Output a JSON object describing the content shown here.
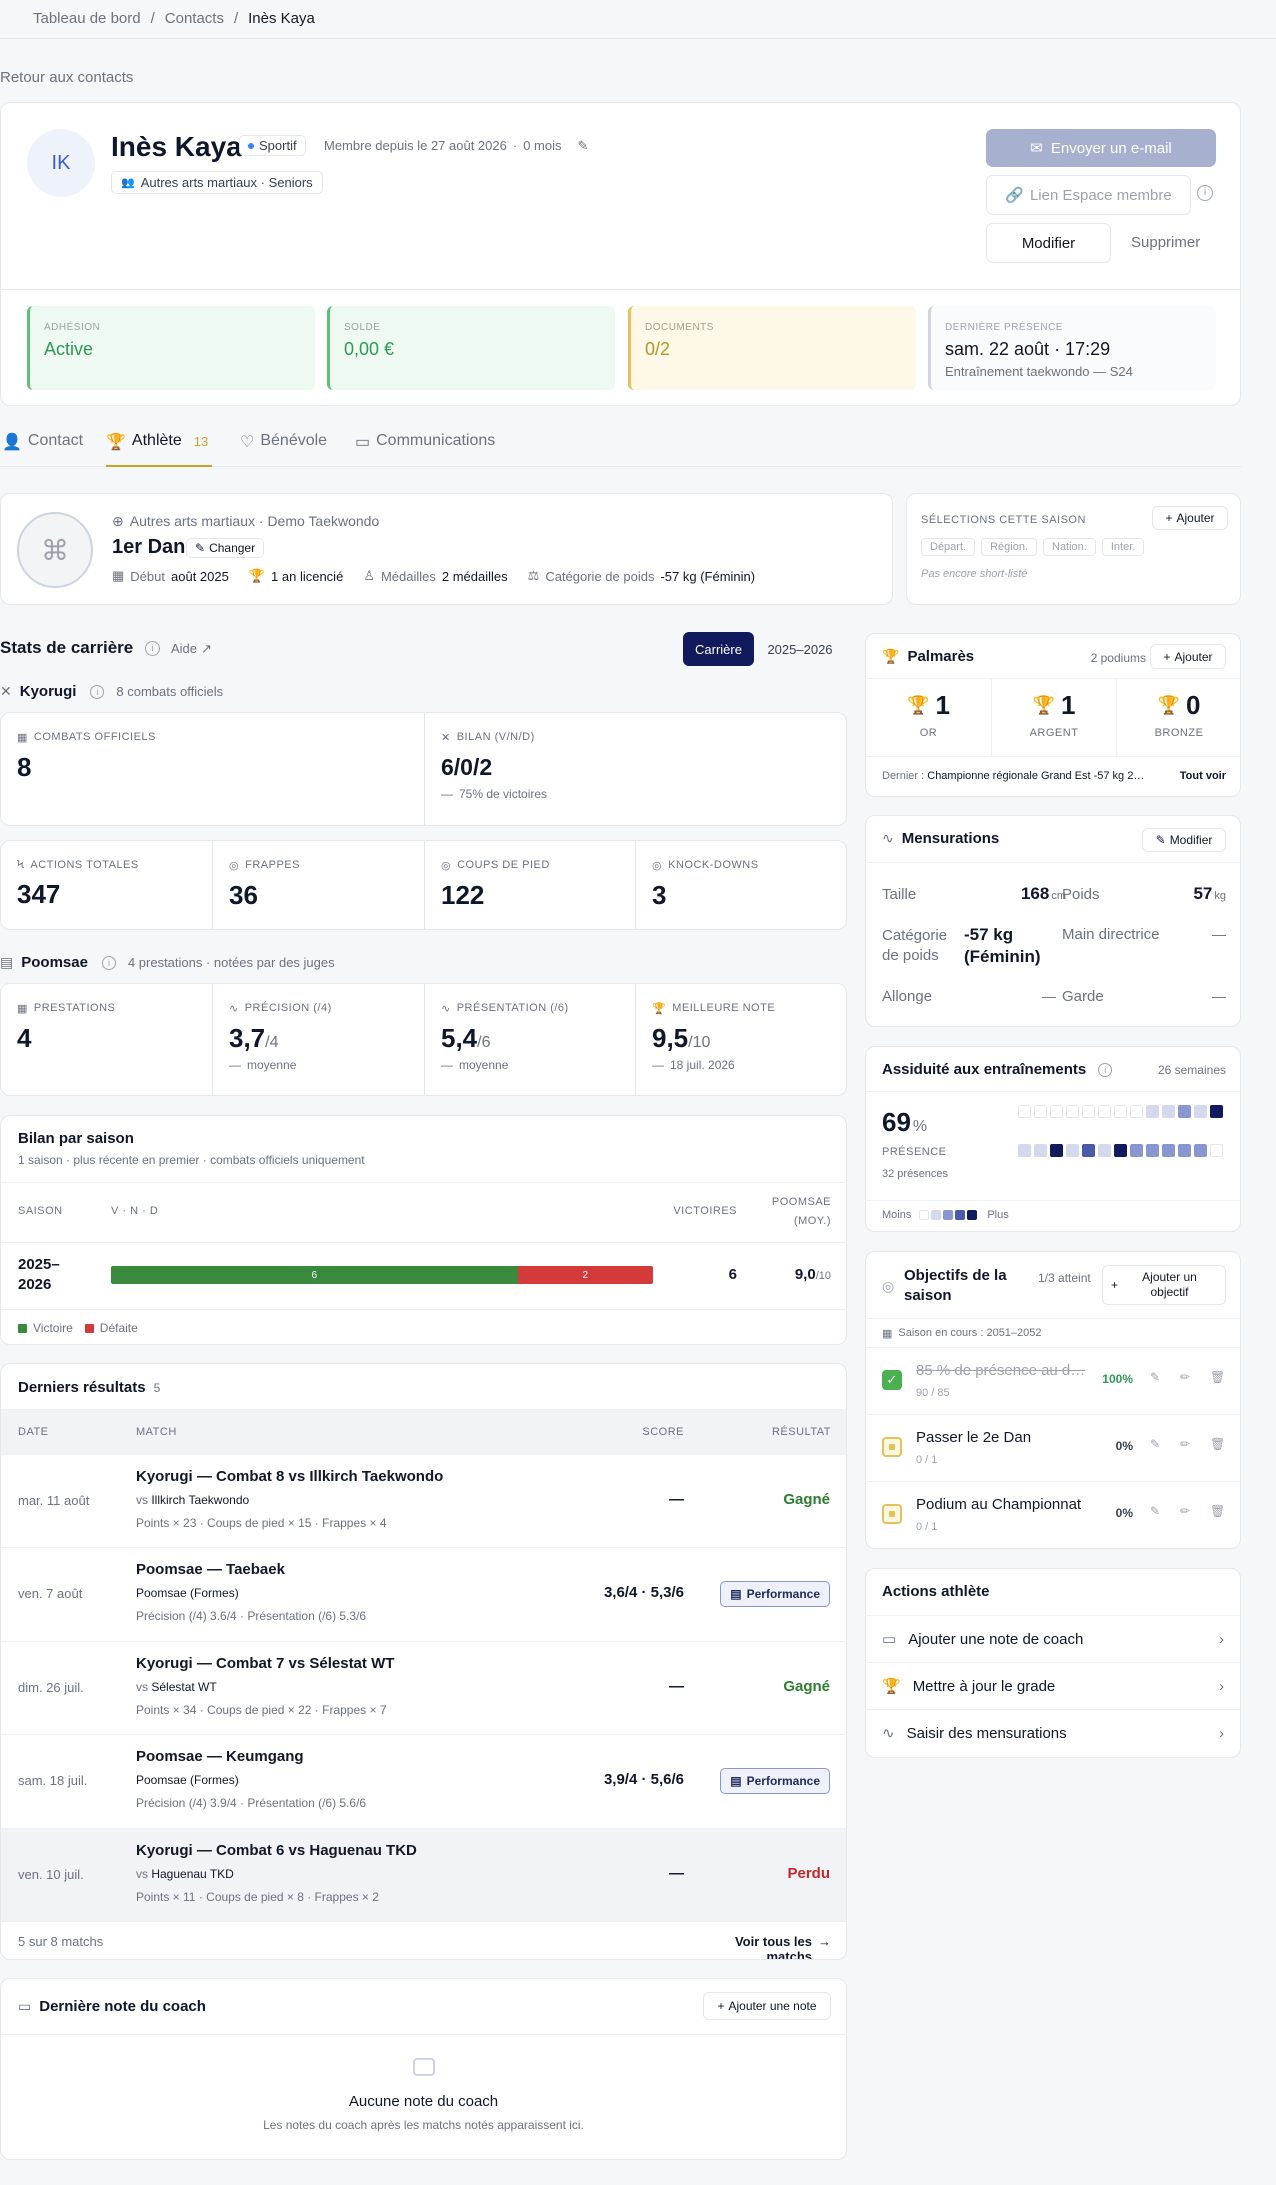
{
  "breadcrumb": {
    "home": "Tableau de bord",
    "sep": "/",
    "contacts": "Contacts",
    "current": "Inès Kaya"
  },
  "back_link": "Retour aux contacts",
  "profile": {
    "initials": "IK",
    "name": "Inès Kaya",
    "role_badge": "Sportif",
    "member_since": "Membre depuis le 27 août 2026",
    "dot": "·",
    "duration": "0 mois",
    "group": "Autres arts martiaux · Seniors",
    "email_button": "Envoyer un e-mail",
    "member_space_button": "Lien Espace membre",
    "edit_button": "Modifier",
    "delete_button": "Supprimer"
  },
  "summary": [
    {
      "label": "ADHÉSION",
      "value": "Active"
    },
    {
      "label": "SOLDE",
      "value": "0,00 €"
    },
    {
      "label": "DOCUMENTS",
      "value": "0/2"
    },
    {
      "label": "DERNIÈRE PRÉSENCE",
      "value": "sam. 22 août · 17:29",
      "sub": "Entraînement taekwondo — S24"
    }
  ],
  "tabs": [
    {
      "label": "Contact"
    },
    {
      "label": "Athlète",
      "count": "13"
    },
    {
      "label": "Bénévole"
    },
    {
      "label": "Communications"
    }
  ],
  "athlete": {
    "discipline": "Autres arts martiaux · Demo Taekwondo",
    "grade": "1er Dan",
    "change": "Changer",
    "debut_label": "Début",
    "debut_value": "août 2025",
    "licence": "1 an licencié",
    "medals_label": "Médailles",
    "medals_value": "2 médailles",
    "weight_label": "Catégorie de poids",
    "weight_value": "-57 kg (Féminin)"
  },
  "selections": {
    "title": "SÉLECTIONS CETTE SAISON",
    "add": "Ajouter",
    "levels": [
      "Départ.",
      "Région.",
      "Nation.",
      "Inter."
    ],
    "empty": "Pas encore short-listé"
  },
  "career": {
    "title": "Stats de carrière",
    "help": "Aide",
    "tab_career": "Carrière",
    "tab_season": "2025–2026"
  },
  "kyorugi": {
    "title": "Kyorugi",
    "sub": "8 combats officiels",
    "official_label": "COMBATS OFFICIELS",
    "official_value": "8",
    "bilan_label": "BILAN (V/N/D)",
    "bilan_value": "6/0/2",
    "bilan_sub": "75% de victoires",
    "stats": [
      {
        "label": "ACTIONS TOTALES",
        "value": "347"
      },
      {
        "label": "FRAPPES",
        "value": "36"
      },
      {
        "label": "COUPS DE PIED",
        "value": "122"
      },
      {
        "label": "KNOCK-DOWNS",
        "value": "3"
      }
    ]
  },
  "poomsae": {
    "title": "Poomsae",
    "sub": "4 prestations · notées par des juges",
    "stats": [
      {
        "label": "PRESTATIONS",
        "value": "4",
        "unit": "",
        "sub": ""
      },
      {
        "label": "PRÉCISION (/4)",
        "value": "3,7",
        "unit": "/4",
        "sub": "moyenne"
      },
      {
        "label": "PRÉSENTATION (/6)",
        "value": "5,4",
        "unit": "/6",
        "sub": "moyenne"
      },
      {
        "label": "MEILLEURE NOTE",
        "value": "9,5",
        "unit": "/10",
        "sub": "18 juil. 2026"
      }
    ]
  },
  "season_summary": {
    "title": "Bilan par saison",
    "sub": "1 saison · plus récente en premier · combats officiels uniquement",
    "col_season": "SAISON",
    "col_vnd": "V · N · D",
    "col_wins": "VICTOIRES",
    "col_poomsae": "POOMSAE (MOY.)",
    "rows": [
      {
        "season": "2025–2026",
        "wins": 6,
        "losses": 2,
        "wins_label": "6",
        "losses_label": "2",
        "victories": "6",
        "poomsae": "9,0",
        "poomsae_unit": "/10"
      }
    ],
    "legend_win": "Victoire",
    "legend_loss": "Défaite"
  },
  "results": {
    "title": "Derniers résultats",
    "count": "5",
    "col_date": "DATE",
    "col_match": "MATCH",
    "col_score": "SCORE",
    "col_result": "RÉSULTAT",
    "rows": [
      {
        "date": "mar. 11 août",
        "title": "Kyorugi — Combat 8 vs Illkirch Taekwondo",
        "vs": "vs",
        "opponent": "Illkirch Taekwondo",
        "meta": "Points × 23 · Coups de pied × 15 · Frappes × 4",
        "score": "—",
        "result": "Gagné",
        "kind": "win"
      },
      {
        "date": "ven. 7 août",
        "title": "Poomsae — Taebaek",
        "vs": "",
        "opponent": "Poomsae (Formes)",
        "meta": "Précision (/4) 3.6/4 · Présentation (/6) 5.3/6",
        "score": "3,6/4 · 5,3/6",
        "result": "Performance",
        "kind": "perf"
      },
      {
        "date": "dim. 26 juil.",
        "title": "Kyorugi — Combat 7 vs Sélestat WT",
        "vs": "vs",
        "opponent": "Sélestat WT",
        "meta": "Points × 34 · Coups de pied × 22 · Frappes × 7",
        "score": "—",
        "result": "Gagné",
        "kind": "win"
      },
      {
        "date": "sam. 18 juil.",
        "title": "Poomsae — Keumgang",
        "vs": "",
        "opponent": "Poomsae (Formes)",
        "meta": "Précision (/4) 3.9/4 · Présentation (/6) 5.6/6",
        "score": "3,9/4 · 5,6/6",
        "result": "Performance",
        "kind": "perf"
      },
      {
        "date": "ven. 10 juil.",
        "title": "Kyorugi — Combat 6 vs Haguenau TKD",
        "vs": "vs",
        "opponent": "Haguenau TKD",
        "meta": "Points × 11 · Coups de pied × 8 · Frappes × 2",
        "score": "—",
        "result": "Perdu",
        "kind": "loss"
      }
    ],
    "footer_count": "5 sur 8 matchs",
    "footer_link": "Voir tous les matchs"
  },
  "coach_note": {
    "title": "Dernière note du coach",
    "add": "Ajouter une note",
    "empty_title": "Aucune note du coach",
    "empty_sub": "Les notes du coach après les matchs notés apparaissent ici."
  },
  "palmares": {
    "title": "Palmarès",
    "count": "2 podiums",
    "add": "Ajouter",
    "medals": [
      {
        "value": "1",
        "label": "OR",
        "color": "#c9a227"
      },
      {
        "value": "1",
        "label": "ARGENT",
        "color": "#8b95a3"
      },
      {
        "value": "0",
        "label": "BRONZE",
        "color": "#b8734a"
      }
    ],
    "last_label": "Dernier :",
    "last_value": "Championne régionale Grand Est -57 kg 2…",
    "see_all": "Tout voir"
  },
  "measures": {
    "title": "Mensurations",
    "edit": "Modifier",
    "height_label": "Taille",
    "height_value": "168",
    "height_unit": "cm",
    "weight_label": "Poids",
    "weight_value": "57",
    "weight_unit": "kg",
    "cat_label": "Catégorie de poids",
    "cat_value": "-57 kg (Féminin)",
    "hand_label": "Main directrice",
    "hand_value": "—",
    "reach_label": "Allonge",
    "reach_value": "—",
    "guard_label": "Garde",
    "guard_value": "—"
  },
  "attendance": {
    "title": "Assiduité aux entraînements",
    "weeks": "26 semaines",
    "pct": "69",
    "pct_unit": "%",
    "label": "PRÉSENCE",
    "sub": "32 présences",
    "less": "Moins",
    "more": "Plus",
    "grid": [
      0,
      0,
      0,
      0,
      0,
      0,
      0,
      0,
      1,
      1,
      2,
      1,
      4,
      1,
      1,
      4,
      1,
      3,
      1,
      4,
      2,
      2,
      2,
      2,
      2,
      0
    ],
    "colors": [
      "#ffffff",
      "#d4d9ee",
      "#8a96cf",
      "#4b5aa8",
      "#101a5c"
    ]
  },
  "goals": {
    "title": "Objectifs de la saison",
    "achieved": "1/3 atteint",
    "add": "Ajouter un objectif",
    "season": "Saison en cours : 2051–2052",
    "items": [
      {
        "title": "85 % de présence au d…",
        "progress": "90 / 85",
        "pct": "100%",
        "done": true
      },
      {
        "title": "Passer le 2e Dan",
        "progress": "0 / 1",
        "pct": "0%",
        "done": false
      },
      {
        "title": "Podium au Championnat …",
        "progress": "0 / 1",
        "pct": "0%",
        "done": false
      }
    ]
  },
  "actions": {
    "title": "Actions athlète",
    "items": [
      {
        "label": "Ajouter une note de coach"
      },
      {
        "label": "Mettre à jour le grade"
      },
      {
        "label": "Saisir des mensurations"
      }
    ]
  },
  "colors": {
    "navy": "#101a5c",
    "green": "#3a8a3d",
    "red": "#d33b3b",
    "accent_blue": "#6c86c9",
    "gold": "#c9a227"
  }
}
